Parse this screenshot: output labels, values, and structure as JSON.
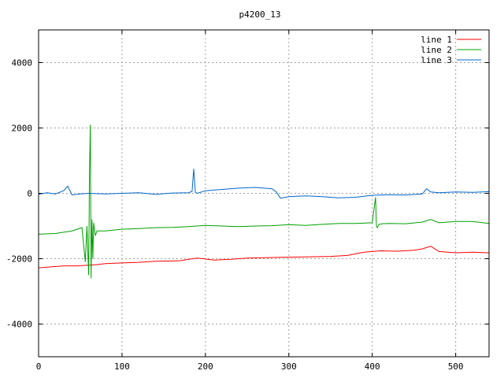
{
  "chart_data": {
    "type": "line",
    "title": "p4200_13",
    "xlabel": "",
    "ylabel": "",
    "xlim": [
      0,
      540
    ],
    "ylim": [
      -5000,
      5000
    ],
    "xticks": [
      0,
      100,
      200,
      300,
      400,
      500
    ],
    "yticks": [
      -4000,
      -2000,
      0,
      2000,
      4000
    ],
    "grid": true,
    "legend_position": "top-right",
    "series": [
      {
        "name": "line 1",
        "color": "#ff0000",
        "x": [
          0,
          15,
          30,
          45,
          60,
          70,
          80,
          100,
          120,
          140,
          160,
          170,
          180,
          190,
          200,
          210,
          230,
          250,
          270,
          290,
          310,
          330,
          350,
          370,
          390,
          410,
          430,
          450,
          460,
          470,
          480,
          500,
          520,
          540
        ],
        "y": [
          -2280,
          -2250,
          -2220,
          -2220,
          -2200,
          -2180,
          -2150,
          -2130,
          -2110,
          -2080,
          -2070,
          -2060,
          -2020,
          -1980,
          -2010,
          -2040,
          -2020,
          -1980,
          -1970,
          -1960,
          -1950,
          -1940,
          -1930,
          -1900,
          -1800,
          -1760,
          -1770,
          -1740,
          -1700,
          -1620,
          -1780,
          -1820,
          -1800,
          -1820
        ]
      },
      {
        "name": "line 2",
        "color": "#00a000",
        "x": [
          0,
          20,
          40,
          52,
          56,
          58,
          60,
          61,
          62,
          63,
          64,
          65,
          66,
          68,
          70,
          75,
          80,
          100,
          120,
          140,
          160,
          180,
          200,
          220,
          240,
          260,
          280,
          300,
          320,
          340,
          360,
          380,
          400,
          404,
          405,
          406,
          408,
          412,
          420,
          440,
          460,
          470,
          480,
          500,
          520,
          540
        ],
        "y": [
          -1250,
          -1230,
          -1150,
          -1050,
          -2100,
          -1000,
          -2500,
          600,
          2100,
          -2600,
          -800,
          -2000,
          -900,
          -1300,
          -1150,
          -1150,
          -1150,
          -1100,
          -1080,
          -1050,
          -1040,
          -1020,
          -980,
          -1000,
          -1020,
          -1000,
          -990,
          -960,
          -980,
          -950,
          -920,
          -920,
          -900,
          -120,
          -1000,
          -1050,
          -950,
          -930,
          -920,
          -930,
          -880,
          -800,
          -900,
          -860,
          -860,
          -920
        ]
      },
      {
        "name": "line 3",
        "color": "#0066cc",
        "x": [
          0,
          10,
          20,
          30,
          35,
          40,
          50,
          60,
          70,
          80,
          100,
          120,
          140,
          160,
          180,
          184,
          186,
          188,
          190,
          200,
          220,
          240,
          260,
          280,
          285,
          290,
          300,
          320,
          340,
          360,
          380,
          400,
          420,
          440,
          460,
          465,
          470,
          480,
          500,
          520,
          540
        ],
        "y": [
          -30,
          20,
          -20,
          80,
          220,
          -50,
          -20,
          0,
          -10,
          -20,
          0,
          20,
          -30,
          10,
          20,
          60,
          750,
          30,
          0,
          80,
          120,
          160,
          180,
          140,
          40,
          -150,
          -100,
          -80,
          -100,
          -140,
          -120,
          -60,
          -40,
          -50,
          -20,
          140,
          40,
          20,
          40,
          30,
          50
        ]
      }
    ]
  }
}
